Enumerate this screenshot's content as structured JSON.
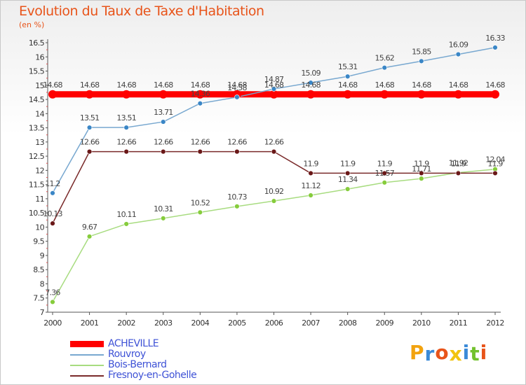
{
  "title": "Evolution du Taux de Taxe d'Habitation",
  "subtitle": "(en %)",
  "logo": {
    "text": "Proxiti",
    "colors": [
      "#f2a30f",
      "#3a8ad8",
      "#e8541a",
      "#f2c40f",
      "#3a8ad8",
      "#73c22e",
      "#e8541a"
    ]
  },
  "chart_data": {
    "type": "line",
    "x": [
      "2000",
      "2001",
      "2002",
      "2003",
      "2004",
      "2005",
      "2006",
      "2007",
      "2008",
      "2009",
      "2010",
      "2011",
      "2012"
    ],
    "ylim": [
      7,
      16.5
    ],
    "yticks": [
      "7",
      "7.5",
      "8",
      "8.5",
      "9",
      "9.5",
      "10",
      "10.5",
      "11",
      "11.5",
      "12",
      "12.5",
      "13",
      "13.5",
      "14",
      "14.5",
      "15",
      "15.5",
      "16",
      "16.5"
    ],
    "grid": false,
    "legend_position": "bottom-left",
    "series": [
      {
        "name": "ACHEVILLE",
        "color": "#ff0000",
        "width": 9,
        "values": [
          14.68,
          14.68,
          14.68,
          14.68,
          14.68,
          14.68,
          14.68,
          14.68,
          14.68,
          14.68,
          14.68,
          14.68,
          14.68
        ],
        "labels": [
          "14.68",
          "14.68",
          "14.68",
          "14.68",
          "14.68",
          "14.68",
          "14.68",
          "14.68",
          "14.68",
          "14.68",
          "14.68",
          "14.68",
          "14.68"
        ]
      },
      {
        "name": "Rouvroy",
        "color": "#78a8d0",
        "point": "#3a86c6",
        "width": 1.5,
        "values": [
          11.2,
          13.51,
          13.51,
          13.71,
          14.36,
          14.58,
          14.87,
          15.09,
          15.31,
          15.62,
          15.85,
          16.09,
          16.33
        ],
        "labels": [
          "11.2",
          "13.51",
          "13.51",
          "13.71",
          "14.36",
          "14.58",
          "14.87",
          "15.09",
          "15.31",
          "15.62",
          "15.85",
          "16.09",
          "16.33"
        ]
      },
      {
        "name": "Bois-Bernard",
        "color": "#a8dc80",
        "point": "#86cc3c",
        "width": 1.5,
        "values": [
          7.36,
          9.67,
          10.11,
          10.31,
          10.52,
          10.73,
          10.92,
          11.12,
          11.34,
          11.57,
          11.71,
          11.92,
          12.04
        ],
        "labels": [
          "7.36",
          "9.67",
          "10.11",
          "10.31",
          "10.52",
          "10.73",
          "10.92",
          "11.12",
          "11.34",
          "11.57",
          "11.71",
          "11.92",
          "12.04"
        ]
      },
      {
        "name": "Fresnoy-en-Gohelle",
        "color": "#7a2a2a",
        "point": "#6a1818",
        "width": 1.5,
        "values": [
          10.13,
          12.66,
          12.66,
          12.66,
          12.66,
          12.66,
          12.66,
          11.9,
          11.9,
          11.9,
          11.9,
          11.9,
          11.9
        ],
        "labels": [
          "10.13",
          "12.66",
          "12.66",
          "12.66",
          "12.66",
          "12.66",
          "12.66",
          "11.9",
          "11.9",
          "11.9",
          "11.9",
          "11.9",
          "11.9"
        ]
      }
    ]
  }
}
